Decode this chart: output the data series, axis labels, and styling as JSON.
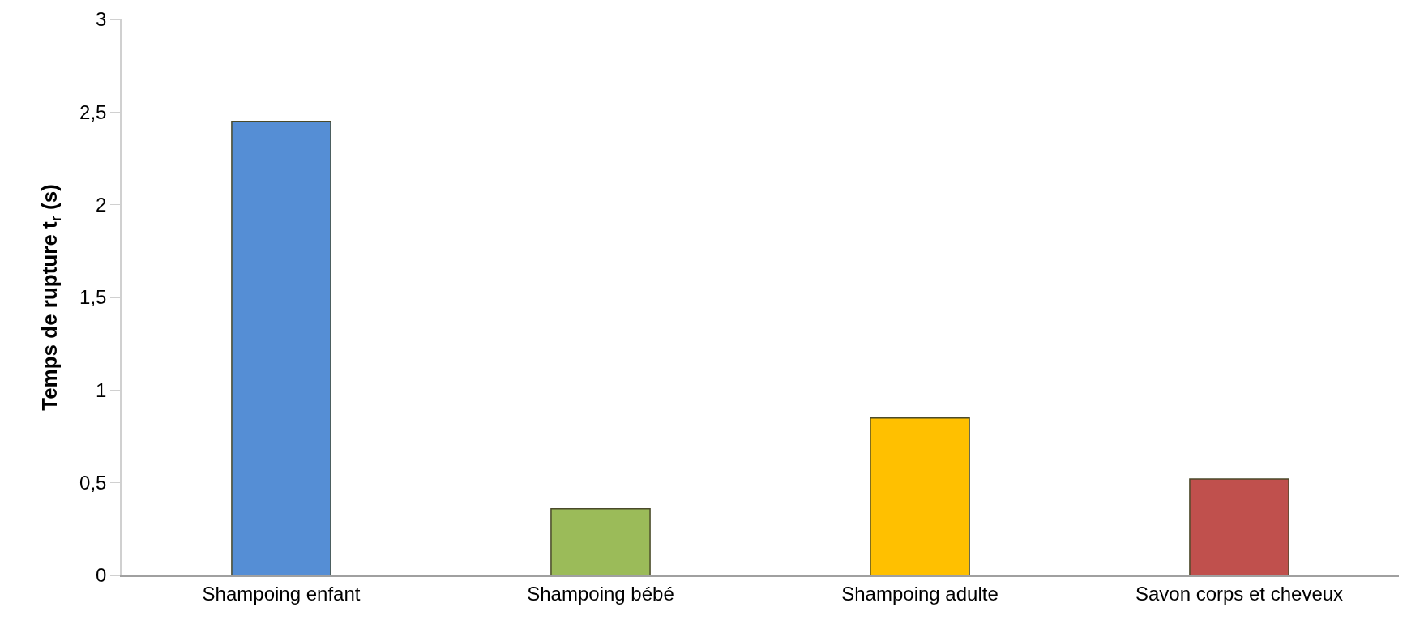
{
  "chart_data": {
    "type": "bar",
    "ylabel": "Temps de rupture t$_{r}$ (s)",
    "categories": [
      "Shampoing enfant",
      "Shampoing bébé",
      "Shampoing adulte",
      "Savon corps et cheveux"
    ],
    "values": [
      2.45,
      0.36,
      0.85,
      0.52
    ],
    "colors": [
      "#558ed5",
      "#9bbb59",
      "#ffc000",
      "#c0504d"
    ],
    "ylim": [
      0,
      3
    ],
    "yticks": [
      0,
      {
        "value": 0.5,
        "label": "0,5"
      },
      1,
      {
        "value": 1.5,
        "label": "1,5"
      },
      2,
      {
        "value": 2.5,
        "label": "2,5"
      },
      3
    ],
    "grid": false
  }
}
